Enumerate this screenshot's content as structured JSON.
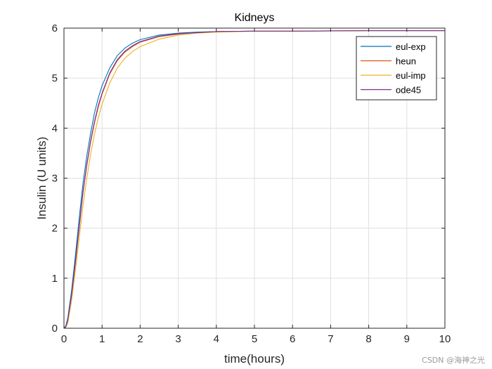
{
  "chart_data": {
    "type": "line",
    "title": "Kidneys",
    "xlabel": "time(hours)",
    "ylabel": "Insulin (U units)",
    "xlim": [
      0,
      10
    ],
    "ylim": [
      0,
      6
    ],
    "xticks": [
      "0",
      "1",
      "2",
      "3",
      "4",
      "5",
      "6",
      "7",
      "8",
      "9",
      "10"
    ],
    "yticks": [
      "0",
      "1",
      "2",
      "3",
      "4",
      "5",
      "6"
    ],
    "grid": true,
    "legend_position": "top-right",
    "series": [
      {
        "name": "eul-exp",
        "color": "#0072BD",
        "x": [
          0,
          0.05,
          0.1,
          0.2,
          0.3,
          0.4,
          0.5,
          0.6,
          0.7,
          0.8,
          0.9,
          1.0,
          1.2,
          1.4,
          1.6,
          1.8,
          2.0,
          2.5,
          3.0,
          3.5,
          4.0,
          5.0,
          6.0,
          8.0,
          10.0
        ],
        "y": [
          0,
          0.05,
          0.2,
          0.75,
          1.45,
          2.2,
          2.9,
          3.45,
          3.9,
          4.3,
          4.6,
          4.85,
          5.2,
          5.45,
          5.6,
          5.7,
          5.77,
          5.86,
          5.9,
          5.92,
          5.93,
          5.94,
          5.94,
          5.95,
          5.95
        ]
      },
      {
        "name": "heun",
        "color": "#D95319",
        "x": [
          0,
          0.05,
          0.1,
          0.2,
          0.3,
          0.4,
          0.5,
          0.6,
          0.7,
          0.8,
          0.9,
          1.0,
          1.2,
          1.4,
          1.6,
          1.8,
          2.0,
          2.5,
          3.0,
          3.5,
          4.0,
          5.0,
          6.0,
          8.0,
          10.0
        ],
        "y": [
          0,
          0.03,
          0.15,
          0.65,
          1.3,
          2.0,
          2.7,
          3.25,
          3.72,
          4.1,
          4.42,
          4.68,
          5.08,
          5.35,
          5.52,
          5.63,
          5.72,
          5.83,
          5.88,
          5.91,
          5.93,
          5.94,
          5.94,
          5.95,
          5.95
        ]
      },
      {
        "name": "eul-imp",
        "color": "#EDB120",
        "x": [
          0,
          0.05,
          0.1,
          0.2,
          0.3,
          0.4,
          0.5,
          0.6,
          0.7,
          0.8,
          0.9,
          1.0,
          1.2,
          1.4,
          1.6,
          1.8,
          2.0,
          2.5,
          3.0,
          3.5,
          4.0,
          5.0,
          6.0,
          8.0,
          10.0
        ],
        "y": [
          0,
          0.02,
          0.1,
          0.55,
          1.15,
          1.8,
          2.45,
          3.0,
          3.48,
          3.88,
          4.2,
          4.48,
          4.9,
          5.2,
          5.4,
          5.53,
          5.63,
          5.78,
          5.86,
          5.9,
          5.92,
          5.94,
          5.94,
          5.95,
          5.95
        ]
      },
      {
        "name": "ode45",
        "color": "#7E2F8E",
        "x": [
          0,
          0.05,
          0.1,
          0.2,
          0.3,
          0.4,
          0.5,
          0.6,
          0.7,
          0.8,
          0.9,
          1.0,
          1.2,
          1.4,
          1.6,
          1.8,
          2.0,
          2.5,
          3.0,
          3.5,
          4.0,
          5.0,
          6.0,
          8.0,
          10.0
        ],
        "y": [
          0,
          0.03,
          0.16,
          0.67,
          1.33,
          2.03,
          2.73,
          3.28,
          3.75,
          4.13,
          4.45,
          4.7,
          5.1,
          5.37,
          5.54,
          5.65,
          5.73,
          5.84,
          5.89,
          5.91,
          5.93,
          5.94,
          5.94,
          5.95,
          5.95
        ]
      }
    ]
  },
  "watermark": "CSDN @海神之光"
}
